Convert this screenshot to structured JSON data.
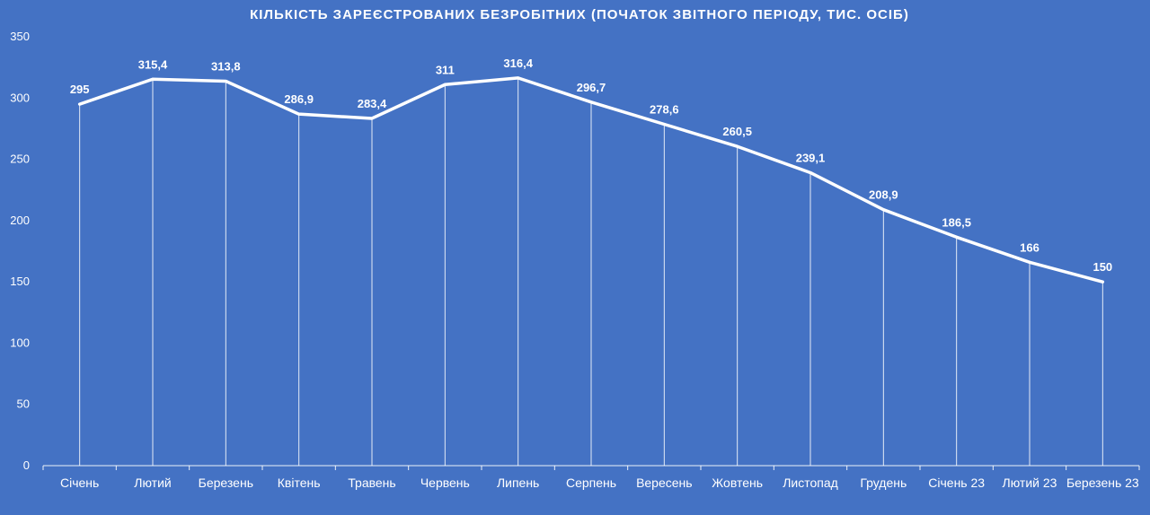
{
  "chart_data": {
    "type": "line",
    "title": "КІЛЬКІСТЬ ЗАРЕЄСТРОВАНИХ БЕЗРОБІТНИХ (ПОЧАТОК ЗВІТНОГО ПЕРІОДУ, ТИС. ОСІБ)",
    "xlabel": "",
    "ylabel": "",
    "categories": [
      "Січень",
      "Лютий",
      "Березень",
      "Квітень",
      "Травень",
      "Червень",
      "Липень",
      "Серпень",
      "Вересень",
      "Жовтень",
      "Листопад",
      "Грудень",
      "Січень 23",
      "Лютий 23",
      "Березень 23"
    ],
    "series": [
      {
        "values": [
          295,
          315.4,
          313.8,
          286.9,
          283.4,
          311,
          316.4,
          296.7,
          278.6,
          260.5,
          239.1,
          208.9,
          186.5,
          166,
          150
        ],
        "labels": [
          "295",
          "315,4",
          "313,8",
          "286,9",
          "283,4",
          "311",
          "316,4",
          "296,7",
          "278,6",
          "260,5",
          "239,1",
          "208,9",
          "186,5",
          "166",
          "150"
        ]
      }
    ],
    "ylim": [
      0,
      350
    ],
    "yticks": [
      0,
      50,
      100,
      150,
      200,
      250,
      300,
      350
    ],
    "grid": false,
    "drop_lines": true,
    "legend": "none",
    "colors": {
      "background": "#4472c4",
      "line": "#ffffff",
      "text": "#ffffff"
    }
  }
}
